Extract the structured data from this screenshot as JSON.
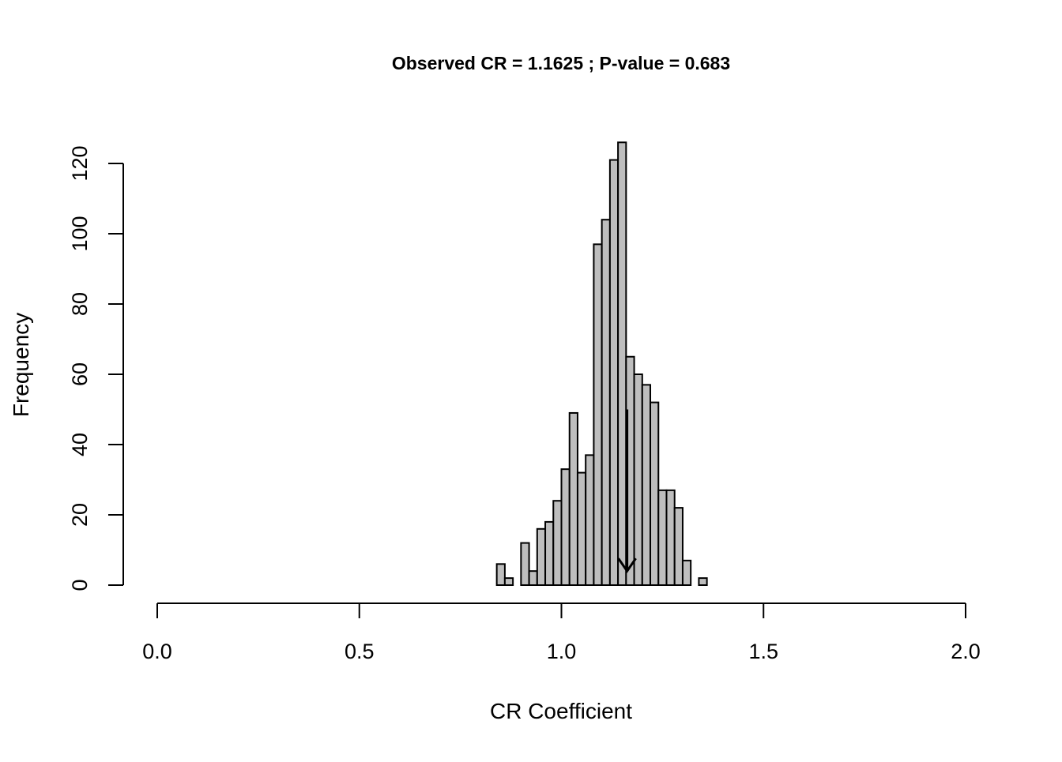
{
  "chart_data": {
    "type": "bar",
    "title": "Observed CR = 1.1625 ; P-value = 0.683",
    "xlabel": "CR Coefficient",
    "ylabel": "Frequency",
    "xlim": [
      0.0,
      2.0
    ],
    "ylim": [
      0,
      120
    ],
    "x_ticks": [
      "0.0",
      "0.5",
      "1.0",
      "1.5",
      "2.0"
    ],
    "y_ticks": [
      "0",
      "20",
      "40",
      "60",
      "80",
      "100",
      "120"
    ],
    "bin_width": 0.02,
    "bins": [
      {
        "x0": 0.84,
        "x1": 0.86,
        "count": 6
      },
      {
        "x0": 0.86,
        "x1": 0.88,
        "count": 2
      },
      {
        "x0": 0.88,
        "x1": 0.9,
        "count": 0
      },
      {
        "x0": 0.9,
        "x1": 0.92,
        "count": 12
      },
      {
        "x0": 0.92,
        "x1": 0.94,
        "count": 4
      },
      {
        "x0": 0.94,
        "x1": 0.96,
        "count": 16
      },
      {
        "x0": 0.96,
        "x1": 0.98,
        "count": 18
      },
      {
        "x0": 0.98,
        "x1": 1.0,
        "count": 24
      },
      {
        "x0": 1.0,
        "x1": 1.02,
        "count": 33
      },
      {
        "x0": 1.02,
        "x1": 1.04,
        "count": 49
      },
      {
        "x0": 1.04,
        "x1": 1.06,
        "count": 32
      },
      {
        "x0": 1.06,
        "x1": 1.08,
        "count": 37
      },
      {
        "x0": 1.08,
        "x1": 1.1,
        "count": 97
      },
      {
        "x0": 1.1,
        "x1": 1.12,
        "count": 104
      },
      {
        "x0": 1.12,
        "x1": 1.14,
        "count": 121
      },
      {
        "x0": 1.14,
        "x1": 1.16,
        "count": 126
      },
      {
        "x0": 1.16,
        "x1": 1.18,
        "count": 65
      },
      {
        "x0": 1.18,
        "x1": 1.2,
        "count": 60
      },
      {
        "x0": 1.2,
        "x1": 1.22,
        "count": 57
      },
      {
        "x0": 1.22,
        "x1": 1.24,
        "count": 52
      },
      {
        "x0": 1.24,
        "x1": 1.26,
        "count": 27
      },
      {
        "x0": 1.26,
        "x1": 1.28,
        "count": 27
      },
      {
        "x0": 1.28,
        "x1": 1.3,
        "count": 22
      },
      {
        "x0": 1.3,
        "x1": 1.32,
        "count": 7
      },
      {
        "x0": 1.32,
        "x1": 1.34,
        "count": 0
      },
      {
        "x0": 1.34,
        "x1": 1.36,
        "count": 2
      }
    ],
    "observed_marker": {
      "x": 1.1625,
      "y_from": 50,
      "y_to": 4
    },
    "bar_color": "#bebebe",
    "edge_color": "#000000",
    "grid": false
  }
}
